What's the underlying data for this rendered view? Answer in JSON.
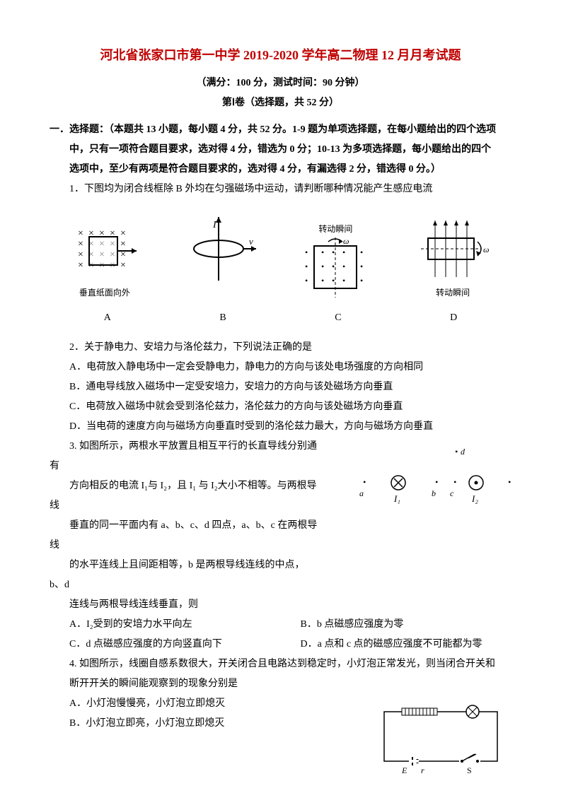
{
  "title": "河北省张家口市第一中学 2019-2020 学年高二物理 12 月月考试题",
  "subtitle": "（满分：100 分，测试时间：90 分钟）",
  "section_header": "第Ⅰ卷（选择题，共 52 分）",
  "instructions_lead": "一．选择题：（本题共 13 小题，每小题 4 分，共 52 分。1-9 题为单项选择题，在每小题给出的四个选项",
  "instructions_line2": "中，只有一项符合题目要求，选对得 4 分，错选为 0 分；10-13 为多项选择题，每小题给出的四个",
  "instructions_line3": "选项中，至少有两项是符合题目要求的，选对得 4 分，有漏选得 2 分，错选得 0 分。）",
  "q1": {
    "stem": "1．下图均为闭合线框除 B 外均在匀强磁场中运动，请判断哪种情况能产生感应电流",
    "figA_note": "垂直纸面向外",
    "figC_note": "转动瞬间",
    "figD_note": "转动瞬间",
    "labels": {
      "a": "A",
      "b": "B",
      "c": "C",
      "d": "D"
    }
  },
  "q2": {
    "stem": "2．关于静电力、安培力与洛伦兹力，下列说法正确的是",
    "A": "A．电荷放入静电场中一定会受静电力，静电力的方向与该处电场强度的方向相同",
    "B": "B．通电导线放入磁场中一定受安培力，安培力的方向与该处磁场方向垂直",
    "C": "C．电荷放入磁场中就会受到洛伦兹力，洛伦兹力的方向与该处磁场方向垂直",
    "D": "D．当电荷的速度方向与磁场方向垂直时受到的洛伦兹力最大，方向与磁场方向垂直"
  },
  "q3": {
    "l1": "3. 如图所示，两根水平放置且相互平行的长直导线分别通有",
    "l2": "方向相反的电流 I₁与 I₂，且 I₁ 与 I₂大小不相等。与两根导线",
    "l3": "垂直的同一平面内有 a、b、c、d 四点，a、b、c 在两根导线",
    "l4": "的水平连线上且间距相等，b 是两根导线连线的中点，b、d",
    "l5": "连线与两根导线连线垂直，则",
    "A": "A．I₂受到的安培力水平向左",
    "B": "B．b 点磁感应强度为零",
    "C": "C．d 点磁感应强度的方向竖直向下",
    "D": "D．a 点和 c 点的磁感应强度不可能都为零",
    "fig": {
      "d": "d",
      "a": "a",
      "b": "b",
      "c": "c",
      "I1": "I₁",
      "I2": "I₂"
    }
  },
  "q4": {
    "l1": "4. 如图所示，线圈自感系数很大，开关闭合且电路达到稳定时，小灯泡正常发光，则当闭合开关和",
    "l2": "断开开关的瞬间能观察到的现象分别是",
    "A": "A．小灯泡慢慢亮，小灯泡立即熄灭",
    "B": "B．小灯泡立即亮，小灯泡立即熄灭",
    "fig": {
      "E": "E",
      "r": "r",
      "S": "S"
    }
  }
}
